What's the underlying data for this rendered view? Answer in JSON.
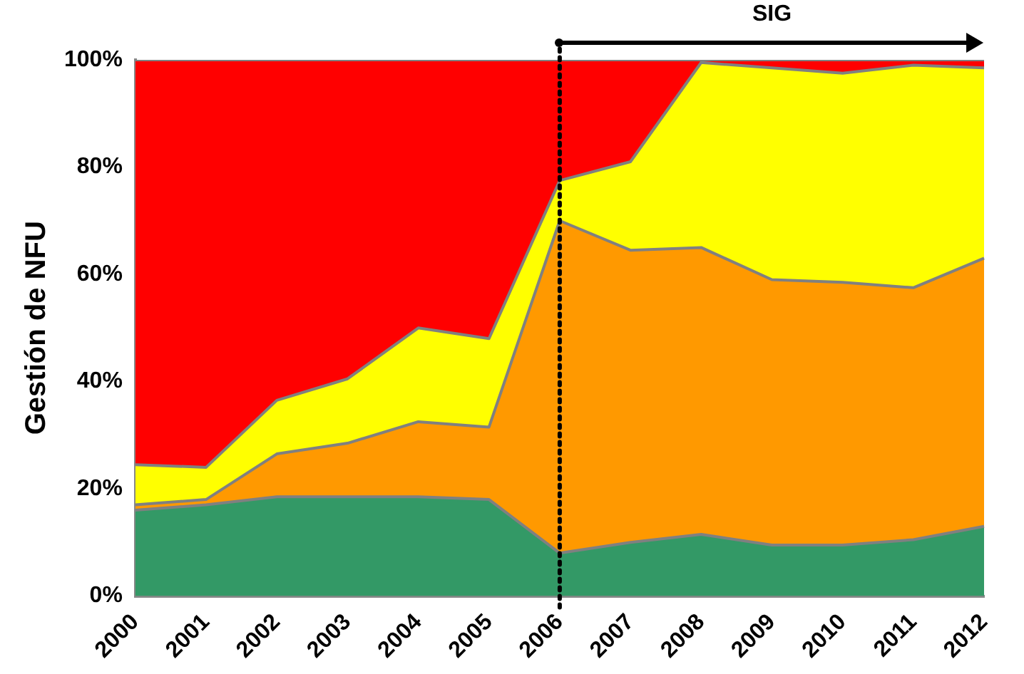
{
  "chart_data": {
    "type": "area",
    "stacked": true,
    "ylabel": "Gestión de NFU",
    "categories": [
      "2000",
      "2001",
      "2002",
      "2003",
      "2004",
      "2005",
      "2006",
      "2007",
      "2008",
      "2009",
      "2010",
      "2011",
      "2012"
    ],
    "series": [
      {
        "color": "#339966",
        "values": [
          16,
          17,
          18.5,
          18.5,
          18.5,
          18,
          8,
          10,
          11.5,
          9.5,
          9.5,
          10.5,
          13
        ]
      },
      {
        "color": "#ff9900",
        "values": [
          1,
          1,
          8,
          10,
          14,
          13.5,
          62,
          54.5,
          53.5,
          49.5,
          49,
          47,
          50
        ]
      },
      {
        "color": "#ffff00",
        "values": [
          7.5,
          6,
          10,
          12,
          17.5,
          16.5,
          7.5,
          16.5,
          34.5,
          39.5,
          39,
          41.5,
          35.5
        ]
      },
      {
        "color": "#ff0000",
        "values": [
          75.5,
          76,
          63.5,
          59.5,
          50,
          52,
          22.5,
          19,
          0.5,
          1.5,
          2.5,
          1,
          1.5
        ]
      }
    ],
    "ylim": [
      0,
      100
    ],
    "yticks": [
      {
        "value": 0,
        "label": "0%"
      },
      {
        "value": 20,
        "label": "20%"
      },
      {
        "value": 40,
        "label": "40%"
      },
      {
        "value": 60,
        "label": "60%"
      },
      {
        "value": 80,
        "label": "80%"
      },
      {
        "value": 100,
        "label": "100%"
      }
    ],
    "grid": false,
    "legend": false,
    "marker": "none",
    "line_style": "solid",
    "ref_lines": [
      {
        "axis": "x",
        "value": "2006",
        "color": "#000000",
        "line_style": "dotted"
      }
    ],
    "annotations": [
      "SIG"
    ]
  }
}
